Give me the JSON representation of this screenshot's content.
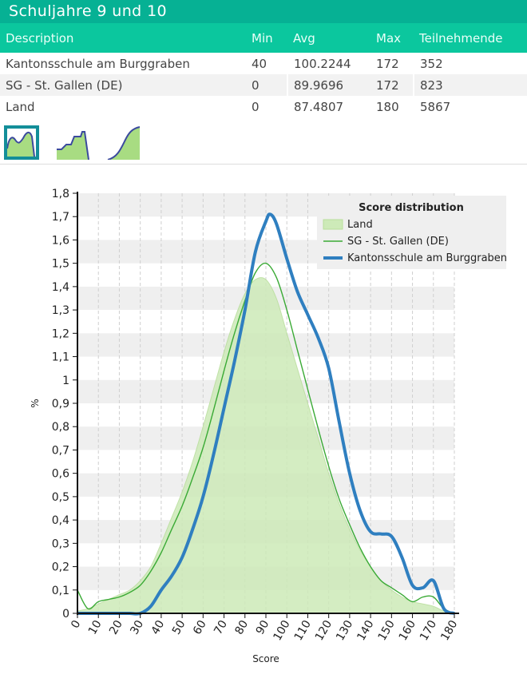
{
  "header": {
    "title": "Schuljahre 9 und 10"
  },
  "table": {
    "columns": [
      "Description",
      "Min",
      "Avg",
      "Max",
      "Teilnehmende"
    ],
    "rows": [
      {
        "description": "Kantonsschule am Burggraben",
        "min": "40",
        "avg": "100.2244",
        "max": "172",
        "participants": "352"
      },
      {
        "description": "SG - St. Gallen (DE)",
        "min": "0",
        "avg": "89.9696",
        "max": "172",
        "participants": "823"
      },
      {
        "description": "Land",
        "min": "0",
        "avg": "87.4807",
        "max": "180",
        "participants": "5867"
      }
    ]
  },
  "view_toggles": [
    {
      "icon": "density-curve-icon",
      "active": true
    },
    {
      "icon": "stepped-distribution-icon",
      "active": false
    },
    {
      "icon": "cumulative-curve-icon",
      "active": false
    }
  ],
  "colors": {
    "header": "#06b194",
    "header_row": "#0bc79e",
    "land_fill": "#cdeab8",
    "sg_line": "#3aaa35",
    "kanti_line": "#2f7fc0",
    "toggle_border": "#138e99"
  },
  "chart_data": {
    "type": "line",
    "xlabel": "Score",
    "ylabel": "%",
    "xlim": [
      0,
      180
    ],
    "ylim": [
      0,
      1.8
    ],
    "xticks": [
      "0",
      "10",
      "20",
      "30",
      "40",
      "50",
      "60",
      "70",
      "80",
      "90",
      "100",
      "110",
      "120",
      "130",
      "140",
      "150",
      "160",
      "170",
      "180"
    ],
    "yticks": [
      "0",
      "0,1",
      "0,2",
      "0,3",
      "0,4",
      "0,5",
      "0,6",
      "0,7",
      "0,8",
      "0,9",
      "1",
      "1,1",
      "1,2",
      "1,3",
      "1,4",
      "1,5",
      "1,6",
      "1,7",
      "1,8"
    ],
    "legend": {
      "title": "Score distribution",
      "position": "top-right"
    },
    "series": [
      {
        "name": "Land",
        "style": "area",
        "x": [
          0,
          5,
          10,
          15,
          20,
          25,
          30,
          35,
          40,
          45,
          50,
          55,
          60,
          65,
          70,
          75,
          80,
          85,
          90,
          95,
          100,
          105,
          110,
          115,
          120,
          125,
          130,
          135,
          140,
          145,
          150,
          155,
          160,
          165,
          170,
          175,
          180
        ],
        "values": [
          0.01,
          0.02,
          0.04,
          0.06,
          0.08,
          0.1,
          0.14,
          0.2,
          0.3,
          0.41,
          0.52,
          0.65,
          0.8,
          0.96,
          1.12,
          1.26,
          1.37,
          1.43,
          1.43,
          1.35,
          1.2,
          1.05,
          0.9,
          0.75,
          0.6,
          0.47,
          0.36,
          0.27,
          0.2,
          0.14,
          0.1,
          0.07,
          0.05,
          0.04,
          0.03,
          0.01,
          0.0
        ]
      },
      {
        "name": "SG - St. Gallen (DE)",
        "style": "thin-line",
        "x": [
          0,
          5,
          10,
          15,
          20,
          25,
          30,
          35,
          40,
          45,
          50,
          55,
          60,
          65,
          70,
          75,
          80,
          85,
          90,
          95,
          100,
          105,
          110,
          115,
          120,
          125,
          130,
          135,
          140,
          145,
          150,
          155,
          160,
          165,
          170,
          175,
          180
        ],
        "values": [
          0.1,
          0.02,
          0.05,
          0.06,
          0.07,
          0.09,
          0.12,
          0.18,
          0.26,
          0.36,
          0.46,
          0.58,
          0.71,
          0.87,
          1.04,
          1.2,
          1.34,
          1.46,
          1.5,
          1.44,
          1.3,
          1.13,
          0.96,
          0.79,
          0.63,
          0.49,
          0.38,
          0.28,
          0.2,
          0.14,
          0.11,
          0.08,
          0.05,
          0.07,
          0.07,
          0.02,
          0.0
        ]
      },
      {
        "name": "Kantonsschule am Burggraben",
        "style": "thick-line",
        "x": [
          0,
          5,
          10,
          15,
          20,
          25,
          30,
          35,
          40,
          45,
          50,
          55,
          60,
          65,
          70,
          75,
          80,
          85,
          90,
          92,
          95,
          100,
          105,
          110,
          115,
          120,
          125,
          130,
          135,
          140,
          145,
          150,
          155,
          160,
          165,
          170,
          175,
          180
        ],
        "values": [
          0.0,
          0.0,
          0.0,
          0.0,
          0.0,
          0.0,
          0.0,
          0.03,
          0.1,
          0.16,
          0.24,
          0.36,
          0.5,
          0.68,
          0.88,
          1.08,
          1.3,
          1.55,
          1.68,
          1.71,
          1.67,
          1.52,
          1.38,
          1.28,
          1.18,
          1.05,
          0.82,
          0.6,
          0.44,
          0.35,
          0.34,
          0.33,
          0.24,
          0.12,
          0.11,
          0.14,
          0.02,
          0.0
        ]
      }
    ]
  }
}
